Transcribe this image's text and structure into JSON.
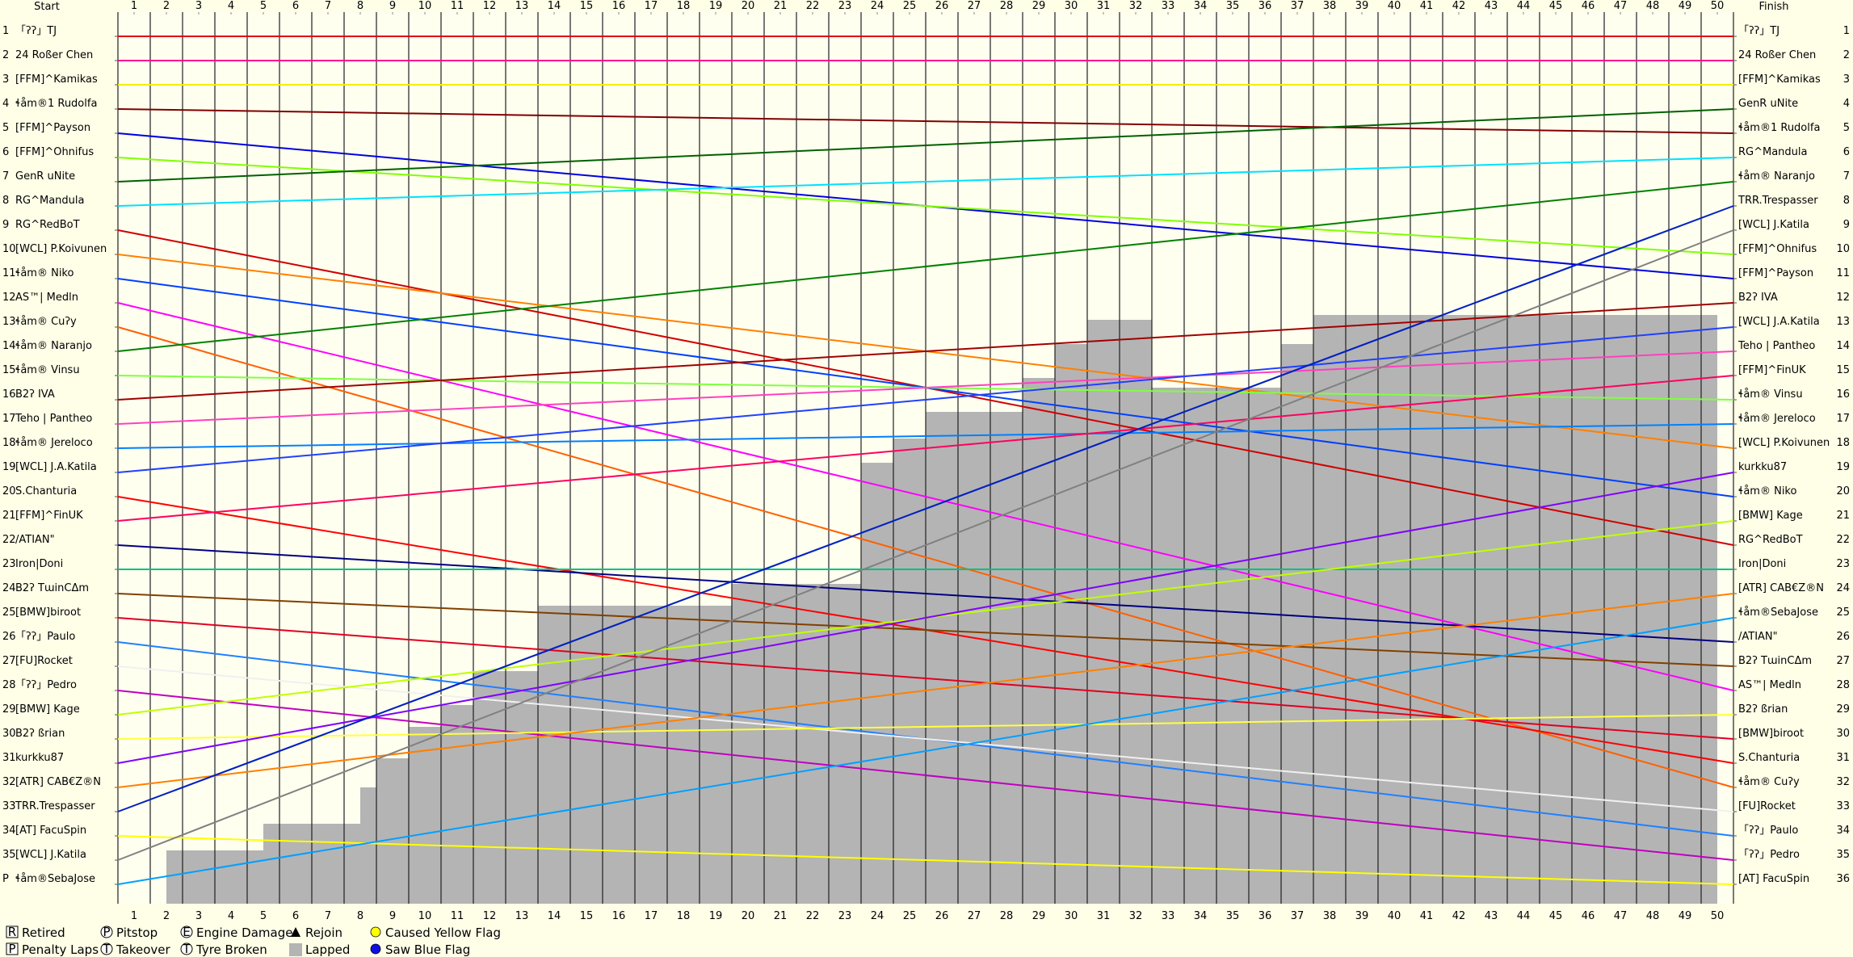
{
  "chart_data": {
    "type": "line",
    "start_title": "Start",
    "finish_title": "Finish",
    "xlim": [
      0,
      50
    ],
    "xticks": [
      {
        "value": 0.5,
        "label": "1"
      },
      {
        "value": 1.5,
        "label": "2"
      },
      {
        "value": 2.5,
        "label": "3"
      },
      {
        "value": 3.5,
        "label": "4"
      },
      {
        "value": 4.5,
        "label": "5"
      },
      {
        "value": 5.5,
        "label": "6"
      },
      {
        "value": 6.5,
        "label": "7"
      },
      {
        "value": 7.5,
        "label": "8"
      },
      {
        "value": 8.5,
        "label": "9"
      },
      {
        "value": 9.5,
        "label": "10"
      },
      {
        "value": 10.5,
        "label": "11"
      },
      {
        "value": 11.5,
        "label": "12"
      },
      {
        "value": 12.5,
        "label": "13"
      },
      {
        "value": 13.5,
        "label": "14"
      },
      {
        "value": 14.5,
        "label": "15"
      },
      {
        "value": 15.5,
        "label": "16"
      },
      {
        "value": 16.5,
        "label": "17"
      },
      {
        "value": 17.5,
        "label": "18"
      },
      {
        "value": 18.5,
        "label": "19"
      },
      {
        "value": 19.5,
        "label": "20"
      },
      {
        "value": 20.5,
        "label": "21"
      },
      {
        "value": 21.5,
        "label": "22"
      },
      {
        "value": 22.5,
        "label": "23"
      },
      {
        "value": 23.5,
        "label": "24"
      },
      {
        "value": 24.5,
        "label": "25"
      },
      {
        "value": 25.5,
        "label": "26"
      },
      {
        "value": 26.5,
        "label": "27"
      },
      {
        "value": 27.5,
        "label": "28"
      },
      {
        "value": 28.5,
        "label": "29"
      },
      {
        "value": 29.5,
        "label": "30"
      },
      {
        "value": 30.5,
        "label": "31"
      },
      {
        "value": 31.5,
        "label": "32"
      },
      {
        "value": 32.5,
        "label": "33"
      },
      {
        "value": 33.5,
        "label": "34"
      },
      {
        "value": 34.5,
        "label": "35"
      },
      {
        "value": 35.5,
        "label": "36"
      },
      {
        "value": 36.5,
        "label": "37"
      },
      {
        "value": 37.5,
        "label": "38"
      },
      {
        "value": 38.5,
        "label": "39"
      },
      {
        "value": 39.5,
        "label": "40"
      },
      {
        "value": 40.5,
        "label": "41"
      },
      {
        "value": 41.5,
        "label": "42"
      },
      {
        "value": 42.5,
        "label": "43"
      },
      {
        "value": 43.5,
        "label": "44"
      },
      {
        "value": 44.5,
        "label": "45"
      },
      {
        "value": 45.5,
        "label": "46"
      },
      {
        "value": 46.5,
        "label": "47"
      },
      {
        "value": 47.5,
        "label": "48"
      },
      {
        "value": 48.5,
        "label": "49"
      },
      {
        "value": 49.5,
        "label": "50"
      }
    ],
    "ylim": [
      36.8,
      0
    ],
    "yticks": [
      1,
      2,
      3,
      4,
      5,
      6,
      7,
      8,
      9,
      10,
      11,
      12,
      13,
      14,
      15,
      16,
      17,
      18,
      19,
      20,
      21,
      22,
      23,
      24,
      25,
      26,
      27,
      28,
      29,
      30,
      31,
      32,
      33,
      34,
      35,
      {
        "value": 36,
        "label": "P"
      }
    ],
    "y2lim": [
      36.8,
      0
    ],
    "y2ticks": [
      1,
      2,
      3,
      4,
      5,
      6,
      7,
      8,
      9,
      10,
      11,
      12,
      13,
      14,
      15,
      16,
      17,
      18,
      19,
      20,
      21,
      22,
      23,
      24,
      25,
      26,
      27,
      28,
      29,
      30,
      31,
      32,
      33,
      34,
      35,
      36
    ],
    "x": [
      0,
      50
    ],
    "series": [
      {
        "name": "「ʔʔ」TJ",
        "color": "#e00000",
        "values": [
          1,
          1
        ]
      },
      {
        "name": "24 Roßer Chen",
        "color": "#ff0090",
        "values": [
          2,
          2
        ]
      },
      {
        "name": "[FFM]^Kamikas",
        "color": "#f0f000",
        "values": [
          3,
          3
        ]
      },
      {
        "name": "ɬåm®1 Rudolfa",
        "color": "#800000",
        "values": [
          4,
          5
        ]
      },
      {
        "name": "[FFM]^Payson",
        "color": "#0000e0",
        "values": [
          5,
          11
        ]
      },
      {
        "name": "[FFM]^Ohnifus",
        "color": "#80ff00",
        "values": [
          6,
          10
        ]
      },
      {
        "name": "GenR uNite",
        "color": "#006000",
        "values": [
          7,
          4
        ]
      },
      {
        "name": "RG^Mandula",
        "color": "#00e0ff",
        "values": [
          8,
          6
        ]
      },
      {
        "name": "RG^RedBoT",
        "color": "#d00000",
        "values": [
          9,
          22
        ]
      },
      {
        "name": "[WCL] P.Koivunen",
        "color": "#ff8000",
        "values": [
          10,
          18
        ]
      },
      {
        "name": "ɬåm® Niko",
        "color": "#0040ff",
        "values": [
          11,
          20
        ]
      },
      {
        "name": "AS™| Medln",
        "color": "#ff00ff",
        "values": [
          12,
          28
        ]
      },
      {
        "name": "ɬåm® Cuʔy",
        "color": "#ff6000",
        "values": [
          13,
          32
        ]
      },
      {
        "name": "ɬåm® Naranjo",
        "color": "#008000",
        "values": [
          14,
          7
        ]
      },
      {
        "name": "ɬåm® Vinsu",
        "color": "#80ff40",
        "values": [
          15,
          16
        ]
      },
      {
        "name": "B2ʔ IVA",
        "color": "#a00000",
        "values": [
          16,
          12
        ]
      },
      {
        "name": "Teho | Pantheo",
        "color": "#ff40c0",
        "values": [
          17,
          14
        ]
      },
      {
        "name": "ɬåm® Jereloco",
        "color": "#0080ff",
        "values": [
          18,
          17
        ]
      },
      {
        "name": "[WCL] J.A.Katila",
        "color": "#2040ff",
        "values": [
          19,
          13
        ]
      },
      {
        "name": "S.Chanturia",
        "color": "#ff0000",
        "values": [
          20,
          31
        ]
      },
      {
        "name": "[FFM]^FinUK",
        "color": "#ff0060",
        "values": [
          21,
          15
        ]
      },
      {
        "name": "/ATIAN\"",
        "color": "#000080",
        "values": [
          22,
          26
        ]
      },
      {
        "name": "Iron|Doni",
        "color": "#00c080",
        "values": [
          23,
          23
        ]
      },
      {
        "name": "B2ʔ TɯinCΔm",
        "color": "#804000",
        "values": [
          24,
          27
        ]
      },
      {
        "name": "[BMW]biroot",
        "color": "#e00020",
        "values": [
          25,
          30
        ]
      },
      {
        "name": "「ʔʔ」Paulo",
        "color": "#2080ff",
        "values": [
          26,
          34
        ]
      },
      {
        "name": "[FU]Rocket",
        "color": "#f0f0f0",
        "values": [
          27,
          33
        ]
      },
      {
        "name": "「ʔʔ」Pedro",
        "color": "#c000c0",
        "values": [
          28,
          35
        ]
      },
      {
        "name": "[BMW] Kage",
        "color": "#c0ff00",
        "values": [
          29,
          21
        ]
      },
      {
        "name": "B2ʔ ßrian",
        "color": "#ffff40",
        "values": [
          30,
          29
        ]
      },
      {
        "name": "kurkku87",
        "color": "#8000ff",
        "values": [
          31,
          19
        ]
      },
      {
        "name": "[ATR] CAB€Z®N",
        "color": "#ff8000",
        "values": [
          32,
          24
        ]
      },
      {
        "name": "TRR.Trespasser",
        "color": "#0020c0",
        "values": [
          33,
          8
        ]
      },
      {
        "name": "[AT] FacuSpin",
        "color": "#ffff00",
        "values": [
          34,
          36
        ]
      },
      {
        "name": "[WCL] J.Katila",
        "color": "#808080",
        "values": [
          35,
          9
        ]
      },
      {
        "name": "ɬåm®SebaJose",
        "color": "#00a0ff",
        "values": [
          36,
          25
        ]
      }
    ],
    "finish_labels": [
      "「ʔʔ」TJ",
      "24 Roßer Chen",
      "[FFM]^Kamikas",
      "GenR uNite",
      "ɬåm®1 Rudolfa",
      "RG^Mandula",
      "ɬåm® Naranjo",
      "TRR.Trespasser",
      "[WCL] J.Katila",
      "[FFM]^Ohnifus",
      "[FFM]^Payson",
      "B2ʔ IVA",
      "[WCL] J.A.Katila",
      "Teho | Pantheo",
      "[FFM]^FinUK",
      "ɬåm® Vinsu",
      "ɬåm® Jereloco",
      "[WCL] P.Koivunen",
      "kurkku87",
      "ɬåm® Niko",
      "[BMW] Kage",
      "RG^RedBoT",
      "Iron|Doni",
      "[ATR] CAB€Z®N",
      "ɬåm®SebaJose",
      "/ATIAN\"",
      "B2ʔ TɯinCΔm",
      "AS™| Medln",
      "B2ʔ ßrian",
      "[BMW]biroot",
      "S.Chanturia",
      "ɬåm® Cuʔy",
      "[FU]Rocket",
      "「ʔʔ」Paulo",
      "「ʔʔ」Pedro",
      "[AT] FacuSpin"
    ],
    "lapped": {
      "color": "#b4b4b4",
      "x": [
        1.5,
        1.5,
        4.5,
        4.5,
        7.5,
        7.5,
        8,
        8,
        9,
        9,
        10,
        10,
        11,
        11,
        13,
        13,
        19,
        19,
        23,
        23,
        24,
        24,
        25,
        25,
        28,
        28,
        29,
        29,
        30,
        30,
        32,
        32,
        36,
        36,
        37,
        37,
        49.5,
        49.5
      ],
      "values": [
        36.8,
        34.6,
        34.6,
        33.5,
        33.5,
        32,
        32,
        30.8,
        30.8,
        29.5,
        29.5,
        28.6,
        28.6,
        27.2,
        27.2,
        24.5,
        24.5,
        23.6,
        23.6,
        18.6,
        18.6,
        17.6,
        17.6,
        16.5,
        16.5,
        15.1,
        15.1,
        13.7,
        13.7,
        12.7,
        12.7,
        15.5,
        15.5,
        13.7,
        13.7,
        12.5,
        12.5,
        36.8
      ]
    },
    "legend": [
      {
        "icon": "R",
        "label": "Retired"
      },
      {
        "icon": "P",
        "label": "Penalty Laps"
      },
      {
        "icon": "P",
        "label": "Pitstop"
      },
      {
        "icon": "T",
        "label": "Takeover"
      },
      {
        "icon": "E",
        "label": "Engine Damage"
      },
      {
        "icon": "T",
        "label": "Tyre Broken"
      },
      {
        "label": "Rejoin"
      },
      {
        "label": "Lapped"
      },
      {
        "label": "Caused Yellow Flag"
      },
      {
        "label": "Saw Blue Flag"
      }
    ]
  }
}
